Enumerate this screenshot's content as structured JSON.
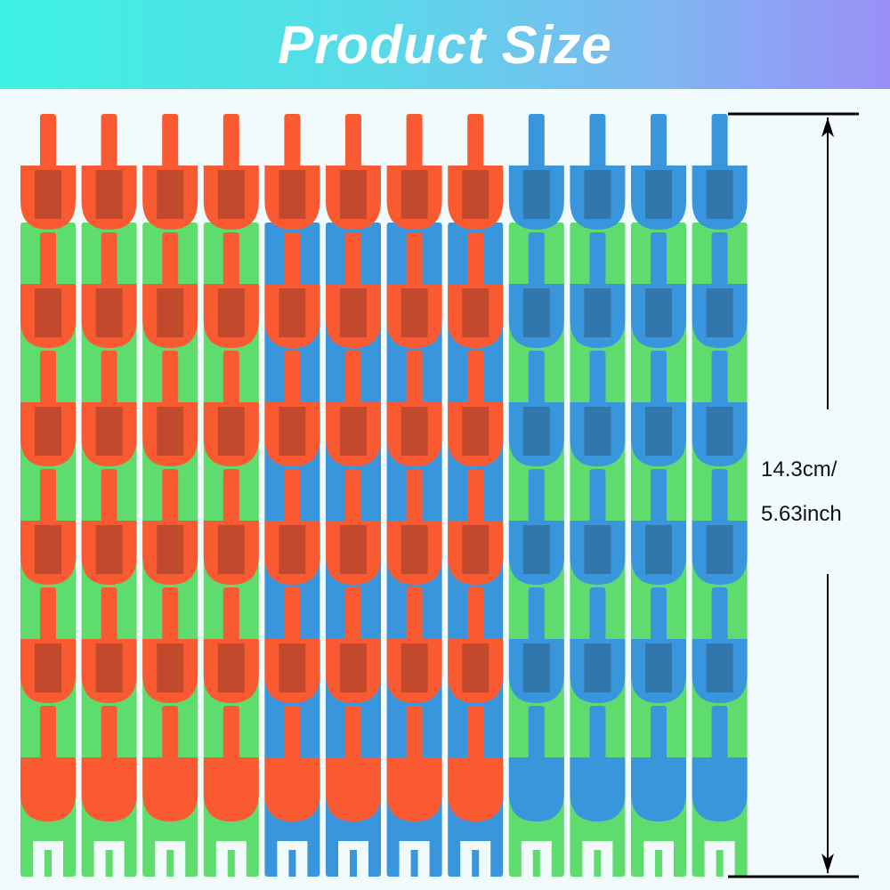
{
  "title": "Product Size",
  "dimension": {
    "cm": "14.3cm/",
    "inch": "5.63inch"
  },
  "colors": {
    "banner_start": "#3ef2e2",
    "banner_end": "#9a90f6",
    "orange": "#fa5a32",
    "blue": "#3a96dc",
    "green": "#5fdc6e",
    "background": "#f2fbfc"
  },
  "strips": [
    {
      "head": "orange",
      "base": "green"
    },
    {
      "head": "orange",
      "base": "green"
    },
    {
      "head": "orange",
      "base": "green"
    },
    {
      "head": "orange",
      "base": "green"
    },
    {
      "head": "orange",
      "base": "blue"
    },
    {
      "head": "orange",
      "base": "blue"
    },
    {
      "head": "orange",
      "base": "blue"
    },
    {
      "head": "orange",
      "base": "blue"
    },
    {
      "head": "blue",
      "base": "green"
    },
    {
      "head": "blue",
      "base": "green"
    },
    {
      "head": "blue",
      "base": "green"
    },
    {
      "head": "blue",
      "base": "green"
    }
  ]
}
